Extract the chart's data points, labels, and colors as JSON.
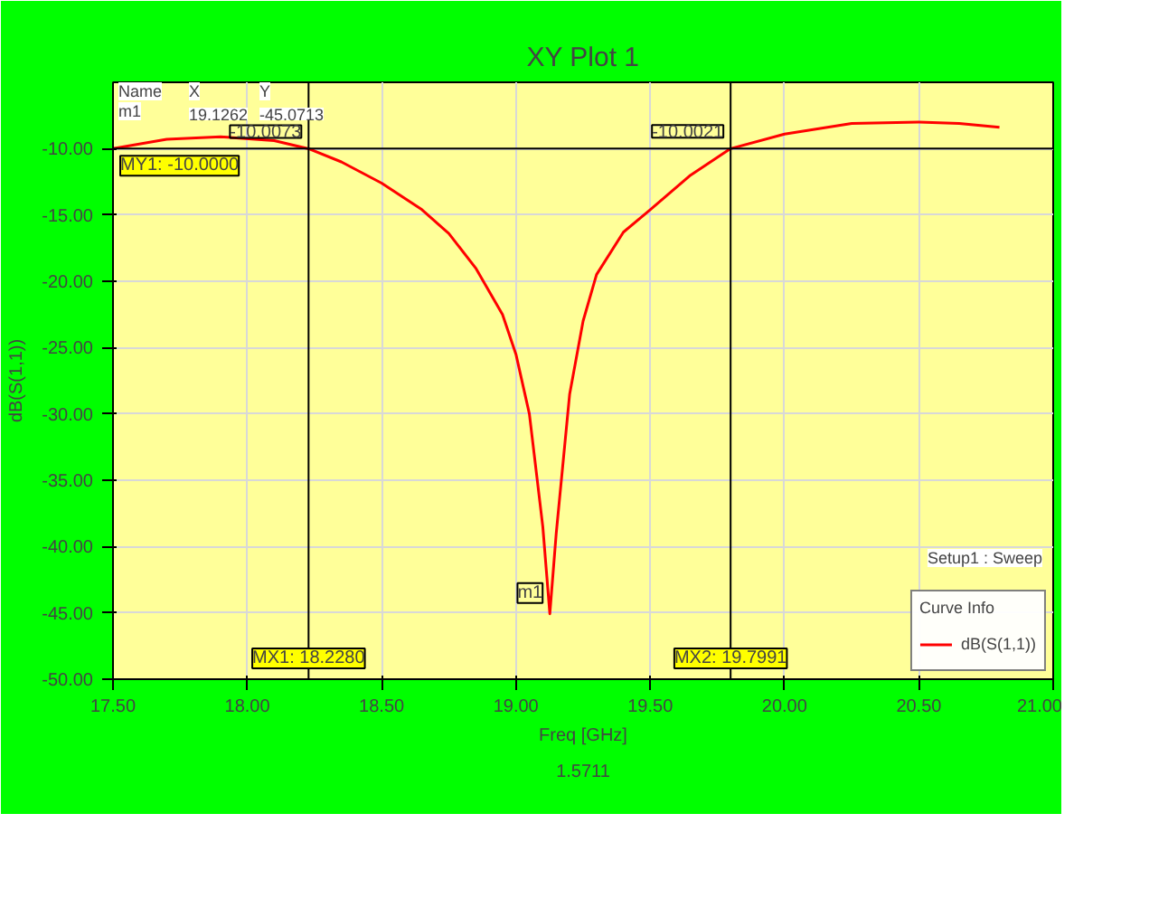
{
  "chart_data": {
    "type": "line",
    "title": "XY Plot 1",
    "xlabel": "Freq [GHz]",
    "ylabel": "dB(S(1,1))",
    "legend_title": "Curve Info",
    "x": [
      17.5,
      17.7,
      17.9,
      18.1,
      18.228,
      18.35,
      18.5,
      18.65,
      18.75,
      18.85,
      18.95,
      19.0,
      19.05,
      19.1,
      19.1262,
      19.15,
      19.2,
      19.25,
      19.3,
      19.4,
      19.5,
      19.65,
      19.7991,
      20.0,
      20.25,
      20.5,
      20.65,
      20.8
    ],
    "series": [
      {
        "name": "dB(S(1,1))",
        "color": "#ff0000",
        "values": [
          -10.0,
          -9.3,
          -9.1,
          -9.4,
          -10.0073,
          -11.0,
          -12.6,
          -14.6,
          -16.4,
          -19.0,
          -22.5,
          -25.5,
          -30.0,
          -38.5,
          -45.0713,
          -39.0,
          -28.5,
          -23.0,
          -19.5,
          -16.3,
          -14.6,
          -12.0,
          -10.0021,
          -8.9,
          -8.1,
          -8.0,
          -8.1,
          -8.4
        ]
      }
    ],
    "xlim": [
      17.5,
      21.0
    ],
    "ylim": [
      -50,
      -5
    ],
    "xticks": [
      {
        "value": 17.5,
        "label": "17.50"
      },
      {
        "value": 18.0,
        "label": "18.00"
      },
      {
        "value": 18.5,
        "label": "18.50"
      },
      {
        "value": 19.0,
        "label": "19.00"
      },
      {
        "value": 19.5,
        "label": "19.50"
      },
      {
        "value": 20.0,
        "label": "20.00"
      },
      {
        "value": 20.5,
        "label": "20.50"
      },
      {
        "value": 21.0,
        "label": "21.00"
      }
    ],
    "yticks": [
      {
        "value": -50,
        "label": "-50.00"
      },
      {
        "value": -45,
        "label": "-45.00"
      },
      {
        "value": -40,
        "label": "-40.00"
      },
      {
        "value": -35,
        "label": "-35.00"
      },
      {
        "value": -30,
        "label": "-30.00"
      },
      {
        "value": -25,
        "label": "-25.00"
      },
      {
        "value": -20,
        "label": "-20.00"
      },
      {
        "value": -15,
        "label": "-15.00"
      },
      {
        "value": -10,
        "label": "-10.00"
      }
    ],
    "grid": true,
    "legend": "bottom right",
    "marker": "none",
    "line_style": "solid",
    "ref_lines": [
      {
        "axis": "y",
        "value": -10,
        "label": "MY1: -10.0000",
        "color": "#000000"
      },
      {
        "axis": "x",
        "value": 18.228,
        "label": "MX1: 18.2280",
        "color": "#000000"
      },
      {
        "axis": "x",
        "value": 19.7991,
        "label": "MX2: 19.7991",
        "color": "#000000"
      }
    ],
    "annotations": [
      "Name",
      "X",
      "Y",
      "m1",
      "19.1262",
      "-45.0713",
      "1.5711",
      "Setup1 : Sweep",
      {
        "text": "-10.0073",
        "x": 18.228,
        "y": -10.0073
      },
      {
        "text": "-10.0021",
        "x": 19.7991,
        "y": -10.0021
      },
      {
        "text": "m1",
        "x": 19.1262,
        "y": -45.0713
      }
    ]
  }
}
